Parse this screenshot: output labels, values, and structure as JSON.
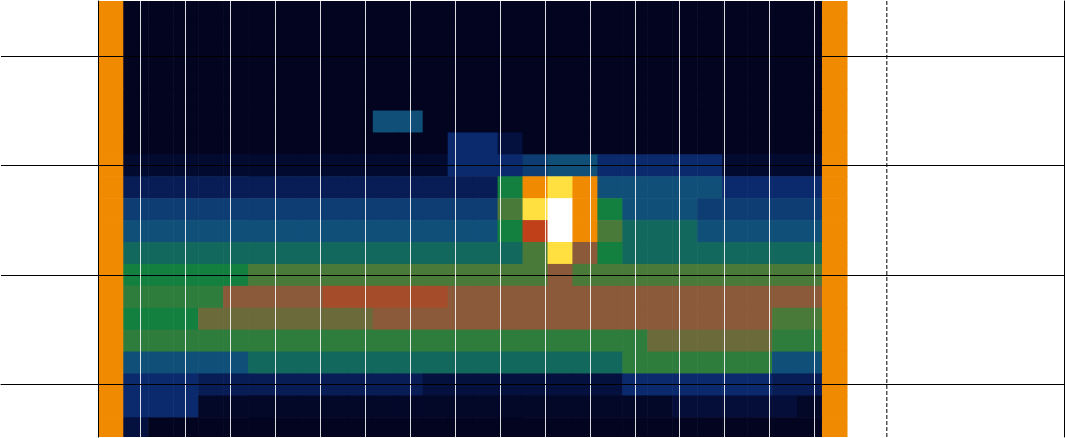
{
  "chart_data": {
    "type": "heatmap",
    "x": [
      0.5,
      1.5,
      2.5,
      3.5,
      4.5,
      5.5,
      6.5,
      7.5,
      8.5,
      9.5,
      10.5,
      11.5,
      12.5,
      13.5,
      14.5,
      15.5,
      16.5,
      17.5,
      18.5,
      19.5,
      20.5,
      21.5,
      22.5,
      23.5,
      24.5,
      25.5,
      26.5,
      27.5,
      28.5,
      29.5
    ],
    "y": [
      34,
      32,
      30,
      28,
      26,
      24,
      22,
      20,
      18,
      16,
      14,
      12,
      10,
      8,
      6,
      4,
      2,
      0,
      -2,
      -4
    ],
    "z": [
      [
        8,
        0,
        0,
        0,
        0,
        0,
        0,
        0,
        0,
        0,
        0,
        0,
        0,
        0,
        0,
        0,
        0,
        0,
        0,
        0,
        0,
        0,
        0,
        0,
        0,
        0,
        0,
        0,
        0,
        8
      ],
      [
        8,
        0,
        0,
        0,
        0,
        0,
        0,
        0,
        0,
        0,
        0,
        0,
        0,
        0,
        0,
        0,
        0,
        0,
        0,
        0,
        0,
        0,
        0,
        0,
        0,
        0,
        0,
        0,
        0,
        8
      ],
      [
        8,
        0,
        0,
        0,
        0,
        0,
        0,
        0,
        0,
        0,
        0,
        0,
        0,
        0,
        0,
        0,
        0,
        0,
        0,
        0,
        0,
        0,
        0,
        0,
        0,
        0,
        0,
        0,
        0,
        8
      ],
      [
        8,
        0,
        0,
        0,
        0,
        0,
        0,
        0,
        0,
        0,
        0,
        0,
        0,
        0,
        0,
        0,
        0,
        0,
        0,
        0,
        0,
        0,
        0,
        0,
        0,
        0,
        0,
        0,
        0,
        8
      ],
      [
        8,
        0,
        0,
        0,
        0,
        0,
        0,
        0,
        0,
        0,
        0,
        0,
        0,
        0,
        0,
        0,
        0,
        0,
        0,
        0,
        0,
        0,
        0,
        0,
        0,
        0,
        0,
        0,
        0,
        8
      ],
      [
        8,
        0,
        0,
        0,
        0,
        0,
        0,
        0,
        0,
        0,
        0,
        3,
        3,
        0,
        0,
        0,
        0,
        0,
        0,
        0,
        0,
        0,
        0,
        0,
        0,
        0,
        0,
        0,
        0,
        8
      ],
      [
        8,
        0,
        0,
        0,
        0,
        0,
        0,
        0,
        0,
        0,
        0,
        0,
        0,
        0,
        2,
        2,
        1,
        0,
        0,
        0,
        0,
        0,
        0,
        0,
        0,
        0,
        0,
        0,
        0,
        8
      ],
      [
        8,
        0.5,
        0.5,
        0.5,
        0.5,
        0.5,
        0.5,
        0.5,
        0.5,
        0.5,
        0.5,
        0.5,
        0.5,
        0.5,
        2,
        2,
        2,
        2.5,
        3,
        3,
        2,
        2,
        2,
        2,
        2,
        0.5,
        0.5,
        0.5,
        0.5,
        8
      ],
      [
        8,
        1.5,
        1.5,
        1.5,
        1.5,
        1.5,
        1.5,
        1.5,
        1.5,
        1.5,
        1.5,
        1.5,
        1.5,
        1.5,
        1.5,
        1.5,
        4,
        8,
        9,
        8,
        3,
        3,
        3,
        3,
        3,
        2,
        2,
        2,
        2,
        8
      ],
      [
        8,
        2.5,
        2.5,
        2.5,
        2.5,
        2.5,
        2.5,
        2.5,
        2.5,
        2.5,
        2.5,
        2.5,
        2.5,
        2.5,
        2.5,
        2.5,
        5,
        9,
        10,
        8,
        4,
        3,
        3,
        3,
        2.5,
        2.5,
        2.5,
        2.5,
        2.5,
        8
      ],
      [
        8,
        3,
        3,
        3,
        3,
        3,
        3,
        3,
        3,
        3,
        3,
        3,
        3,
        3,
        3,
        3,
        4,
        7,
        10,
        8,
        5,
        3.5,
        3.5,
        3.5,
        3,
        3,
        3,
        3,
        3,
        8
      ],
      [
        8,
        3.5,
        3.5,
        3.5,
        3.5,
        3.5,
        3.5,
        3.5,
        3.5,
        3.5,
        3.5,
        3.5,
        3.5,
        3.5,
        3.5,
        3.5,
        3.5,
        5,
        9,
        6,
        4,
        3.5,
        3.5,
        3.5,
        3.5,
        3.5,
        3.5,
        3.5,
        3.5,
        8
      ],
      [
        8,
        4,
        4,
        4,
        4,
        4,
        5,
        5,
        5,
        5,
        5,
        5,
        5,
        5,
        5,
        5,
        5,
        5,
        6,
        5,
        5,
        5,
        5,
        5,
        5,
        5,
        5,
        5,
        5,
        8
      ],
      [
        8,
        4.5,
        4.5,
        4.5,
        4.5,
        6,
        6,
        6,
        6,
        6.5,
        6.5,
        6.5,
        6.5,
        6.5,
        6,
        6,
        6,
        6,
        6,
        6,
        6,
        6,
        6,
        6,
        6,
        6,
        6,
        6,
        6,
        8
      ],
      [
        8,
        4,
        4,
        4,
        5.5,
        5.5,
        5.5,
        5.5,
        5.5,
        5.5,
        5.5,
        6,
        6,
        6,
        6,
        6,
        6,
        6,
        6,
        6,
        6,
        6,
        6,
        6,
        6,
        6,
        6,
        5,
        5,
        8
      ],
      [
        8,
        4.5,
        4.5,
        4.5,
        4.5,
        4.5,
        4.5,
        4.5,
        4.5,
        4.5,
        4.5,
        4.5,
        4.5,
        4.5,
        4.5,
        4.5,
        4.5,
        4.5,
        4.5,
        4.5,
        4.5,
        4.5,
        5.5,
        5.5,
        5.5,
        5.5,
        5.5,
        4.5,
        4.5,
        8
      ],
      [
        8,
        3,
        3,
        3,
        3,
        3,
        3.5,
        3.5,
        3.5,
        3.5,
        3.5,
        3.5,
        3.5,
        3.5,
        3.5,
        3.5,
        3.5,
        3.5,
        3.5,
        3.5,
        3.5,
        4.5,
        4.5,
        4.5,
        4.5,
        4.5,
        4.5,
        3,
        3,
        8
      ],
      [
        8,
        2,
        2,
        2,
        1.5,
        1.5,
        1.5,
        1.5,
        1.5,
        1.5,
        1.5,
        1.5,
        1.5,
        1,
        1,
        1,
        1,
        1,
        1,
        1,
        1,
        2,
        2,
        2,
        2,
        2,
        2,
        1.5,
        1.5,
        8
      ],
      [
        8,
        2,
        2,
        2,
        0.3,
        0.3,
        0.3,
        0.3,
        0.3,
        0.3,
        0.3,
        0.3,
        0.3,
        0.3,
        0.3,
        0.3,
        0.3,
        0.3,
        0.3,
        0.3,
        0.3,
        0.3,
        0.3,
        0.8,
        0.8,
        0.8,
        0.8,
        0.8,
        0.3,
        8
      ],
      [
        8,
        1,
        0,
        0,
        0,
        0,
        0,
        0,
        0,
        0,
        0,
        0,
        0,
        0,
        0,
        0,
        0,
        0,
        0,
        0,
        0,
        0,
        0,
        0,
        0,
        0,
        0,
        0,
        0,
        8
      ]
    ],
    "value_range": [
      0,
      10
    ],
    "xlim": [
      -3.9,
      38.7
    ],
    "xticks": [
      1.7,
      3.5,
      5.3,
      7.1,
      8.9,
      10.7,
      12.5,
      14.3,
      16.1,
      17.9,
      19.7,
      21.5,
      23.3,
      25.1,
      26.9,
      28.7
    ],
    "ylim": [
      -4.8,
      35
    ],
    "yticks": [
      0,
      10,
      20,
      30
    ],
    "grid": true,
    "tick_labels": false,
    "reference_lines": [
      {
        "x": 31.6,
        "line_style": "dashed"
      }
    ]
  }
}
